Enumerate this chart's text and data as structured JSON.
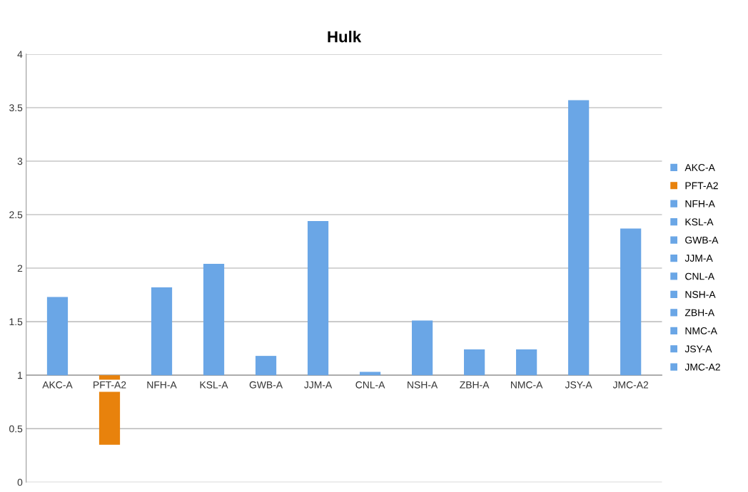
{
  "chart_data": {
    "type": "bar",
    "title": "Hulk",
    "categories": [
      "AKC-A",
      "PFT-A2",
      "NFH-A",
      "KSL-A",
      "GWB-A",
      "JJM-A",
      "CNL-A",
      "NSH-A",
      "ZBH-A",
      "NMC-A",
      "JSY-A",
      "JMC-A2"
    ],
    "series": [
      {
        "name": "AKC-A",
        "color": "#6aa6e6",
        "base": [
          1,
          null,
          null,
          null,
          null,
          null,
          null,
          null,
          null,
          null,
          null,
          null
        ],
        "values": [
          0.73,
          null,
          null,
          null,
          null,
          null,
          null,
          null,
          null,
          null,
          null,
          null
        ]
      },
      {
        "name": "PFT-A2",
        "color": "#e8820c",
        "base": [
          null,
          1,
          null,
          null,
          null,
          null,
          null,
          null,
          null,
          null,
          null,
          null
        ],
        "values": [
          null,
          -0.65,
          null,
          null,
          null,
          null,
          null,
          null,
          null,
          null,
          null,
          null
        ]
      },
      {
        "name": "NFH-A",
        "color": "#6aa6e6",
        "base": [
          null,
          null,
          1,
          null,
          null,
          null,
          null,
          null,
          null,
          null,
          null,
          null
        ],
        "values": [
          null,
          null,
          0.82,
          null,
          null,
          null,
          null,
          null,
          null,
          null,
          null,
          null
        ]
      },
      {
        "name": "KSL-A",
        "color": "#6aa6e6",
        "base": [
          null,
          null,
          null,
          1,
          null,
          null,
          null,
          null,
          null,
          null,
          null,
          null
        ],
        "values": [
          null,
          null,
          null,
          1.04,
          null,
          null,
          null,
          null,
          null,
          null,
          null,
          null
        ]
      },
      {
        "name": "GWB-A",
        "color": "#6aa6e6",
        "base": [
          null,
          null,
          null,
          null,
          1,
          null,
          null,
          null,
          null,
          null,
          null,
          null
        ],
        "values": [
          null,
          null,
          null,
          null,
          0.18,
          null,
          null,
          null,
          null,
          null,
          null,
          null
        ]
      },
      {
        "name": "JJM-A",
        "color": "#6aa6e6",
        "base": [
          null,
          null,
          null,
          null,
          null,
          1,
          null,
          null,
          null,
          null,
          null,
          null
        ],
        "values": [
          null,
          null,
          null,
          null,
          null,
          1.44,
          null,
          null,
          null,
          null,
          null,
          null
        ]
      },
      {
        "name": "CNL-A",
        "color": "#6aa6e6",
        "base": [
          null,
          null,
          null,
          null,
          null,
          null,
          1,
          null,
          null,
          null,
          null,
          null
        ],
        "values": [
          null,
          null,
          null,
          null,
          null,
          null,
          0.03,
          null,
          null,
          null,
          null,
          null
        ]
      },
      {
        "name": "NSH-A",
        "color": "#6aa6e6",
        "base": [
          null,
          null,
          null,
          null,
          null,
          null,
          null,
          1,
          null,
          null,
          null,
          null
        ],
        "values": [
          null,
          null,
          null,
          null,
          null,
          null,
          null,
          0.51,
          null,
          null,
          null,
          null
        ]
      },
      {
        "name": "ZBH-A",
        "color": "#6aa6e6",
        "base": [
          null,
          null,
          null,
          null,
          null,
          null,
          null,
          null,
          1,
          null,
          null,
          null
        ],
        "values": [
          null,
          null,
          null,
          null,
          null,
          null,
          null,
          null,
          0.24,
          null,
          null,
          null
        ]
      },
      {
        "name": "NMC-A",
        "color": "#6aa6e6",
        "base": [
          null,
          null,
          null,
          null,
          null,
          null,
          null,
          null,
          null,
          1,
          null,
          null
        ],
        "values": [
          null,
          null,
          null,
          null,
          null,
          null,
          null,
          null,
          null,
          0.24,
          null,
          null
        ]
      },
      {
        "name": "JSY-A",
        "color": "#6aa6e6",
        "base": [
          null,
          null,
          null,
          null,
          null,
          null,
          null,
          null,
          null,
          null,
          1,
          null
        ],
        "values": [
          null,
          null,
          null,
          null,
          null,
          null,
          null,
          null,
          null,
          null,
          2.57,
          null
        ]
      },
      {
        "name": "JMC-A2",
        "color": "#6aa6e6",
        "base": [
          null,
          null,
          null,
          null,
          null,
          null,
          null,
          null,
          null,
          null,
          null,
          1
        ],
        "values": [
          null,
          null,
          null,
          null,
          null,
          null,
          null,
          null,
          null,
          null,
          null,
          1.37
        ]
      }
    ],
    "ylim": [
      0,
      4
    ],
    "yticks": [
      0,
      0.5,
      1,
      1.5,
      2,
      2.5,
      3,
      3.5,
      4
    ],
    "grid": "y",
    "legend": "right"
  }
}
